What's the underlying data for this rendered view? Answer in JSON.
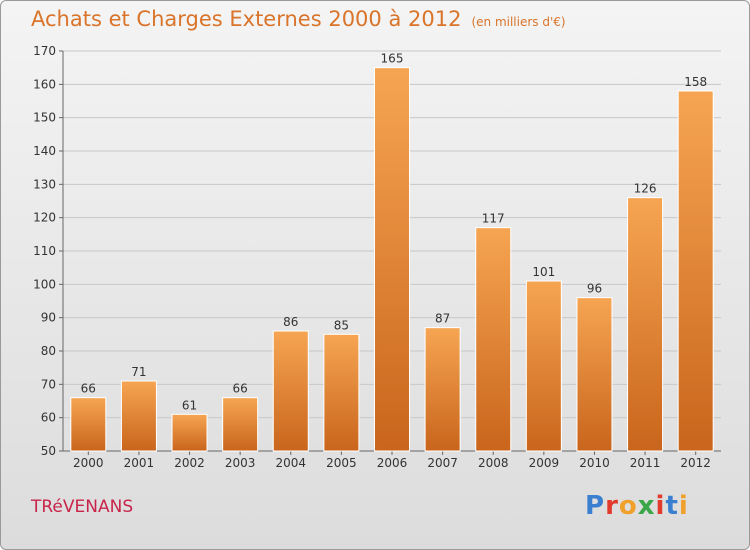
{
  "header": {
    "title": "Achats et Charges Externes 2000 à 2012",
    "subtitle": "(en milliers d'€)"
  },
  "footer": {
    "commune": "TRéVENANS",
    "logo": {
      "letters": [
        "P",
        "r",
        "o",
        "x",
        "i",
        "t",
        "i"
      ],
      "colors": [
        "#3a7fd0",
        "#e23b2e",
        "#f0a12c",
        "#3aa648",
        "#e23b2e",
        "#3a7fd0",
        "#f0a12c"
      ]
    }
  },
  "colors": {
    "bar_light": "#f6a552",
    "bar_dark": "#c9651c",
    "grid": "#c8c8c8",
    "accent": "#d9742a",
    "commune": "#c8244a"
  },
  "chart_data": {
    "type": "bar",
    "title": "Achats et Charges Externes 2000 à 2012",
    "subtitle": "(en milliers d'€)",
    "categories": [
      "2000",
      "2001",
      "2002",
      "2003",
      "2004",
      "2005",
      "2006",
      "2007",
      "2008",
      "2009",
      "2010",
      "2011",
      "2012"
    ],
    "values": [
      66,
      71,
      61,
      66,
      86,
      85,
      165,
      87,
      117,
      101,
      96,
      126,
      158
    ],
    "ylim": [
      50,
      170
    ],
    "yticks": [
      50,
      60,
      70,
      80,
      90,
      100,
      110,
      120,
      130,
      140,
      150,
      160,
      170
    ],
    "grid": true,
    "legend": "none"
  }
}
